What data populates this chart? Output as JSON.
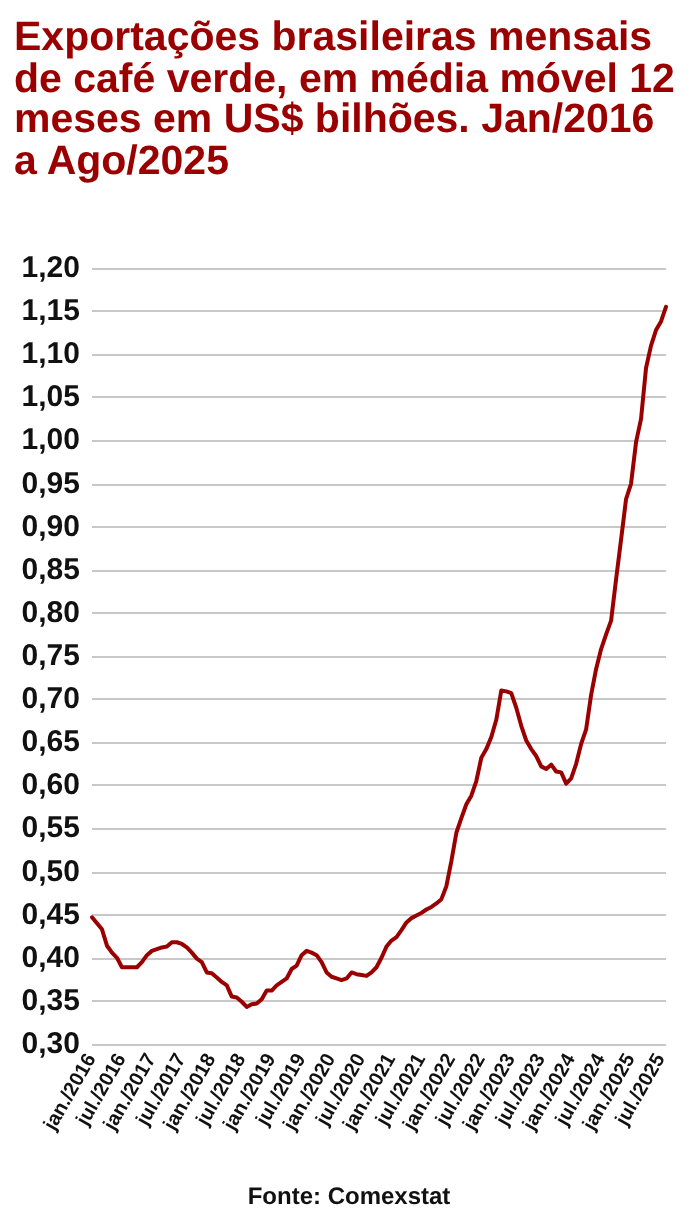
{
  "chart_data": {
    "type": "line",
    "title": "Exportações brasileiras mensais de café verde, em média móvel 12 meses em US$ bilhões. Jan/2016 a Ago/2025",
    "annotations": [
      "Fonte: Comexstat"
    ],
    "categories": [
      "jan./2016",
      null,
      null,
      null,
      null,
      null,
      "jul./2016",
      null,
      null,
      null,
      null,
      null,
      "jan./2017",
      null,
      null,
      null,
      null,
      null,
      "jul./2017",
      null,
      null,
      null,
      null,
      null,
      "jan./2018",
      null,
      null,
      null,
      null,
      null,
      "jul./2018",
      null,
      null,
      null,
      null,
      null,
      "jan./2019",
      null,
      null,
      null,
      null,
      null,
      "jul./2019",
      null,
      null,
      null,
      null,
      null,
      "jan./2020",
      null,
      null,
      null,
      null,
      null,
      "jul./2020",
      null,
      null,
      null,
      null,
      null,
      "jan./2021",
      null,
      null,
      null,
      null,
      null,
      "jul./2021",
      null,
      null,
      null,
      null,
      null,
      "jan./2022",
      null,
      null,
      null,
      null,
      null,
      "jul./2022",
      null,
      null,
      null,
      null,
      null,
      "jan./2023",
      null,
      null,
      null,
      null,
      null,
      "jul./2023",
      null,
      null,
      null,
      null,
      null,
      "jan./2024",
      null,
      null,
      null,
      null,
      null,
      "jul./2024",
      null,
      null,
      null,
      null,
      null,
      "jan./2025",
      null,
      null,
      null,
      null,
      null,
      "jul./2025",
      null
    ],
    "series": [
      {
        "color": "#9b0000",
        "values": [
          0.447,
          0.44,
          0.433,
          0.414,
          0.406,
          0.4,
          0.389,
          0.389,
          0.389,
          0.389,
          0.395,
          0.403,
          0.408,
          0.41,
          0.412,
          0.413,
          0.418,
          0.418,
          0.416,
          0.412,
          0.406,
          0.399,
          0.395,
          0.383,
          0.382,
          0.377,
          0.372,
          0.368,
          0.355,
          0.354,
          0.349,
          0.343,
          0.346,
          0.347,
          0.352,
          0.362,
          0.362,
          0.368,
          0.372,
          0.376,
          0.387,
          0.391,
          0.403,
          0.408,
          0.406,
          0.403,
          0.395,
          0.383,
          0.378,
          0.376,
          0.374,
          0.376,
          0.383,
          0.381,
          0.38,
          0.379,
          0.383,
          0.389,
          0.4,
          0.413,
          0.42,
          0.424,
          0.432,
          0.441,
          0.446,
          0.449,
          0.452,
          0.456,
          0.459,
          0.463,
          0.468,
          0.483,
          0.512,
          0.545,
          0.562,
          0.578,
          0.588,
          0.605,
          0.632,
          0.642,
          0.656,
          0.676,
          0.71,
          0.709,
          0.707,
          0.69,
          0.669,
          0.652,
          0.642,
          0.634,
          0.622,
          0.619,
          0.624,
          0.616,
          0.615,
          0.602,
          0.608,
          0.625,
          0.648,
          0.665,
          0.705,
          0.735,
          0.758,
          0.775,
          0.791,
          0.839,
          0.885,
          0.932,
          0.95,
          0.998,
          1.025,
          1.084,
          1.11,
          1.128,
          1.138,
          1.155
        ]
      }
    ],
    "ylim": [
      0.3,
      1.2
    ],
    "yticks": [
      {
        "value": 0.3,
        "label": "0,30"
      },
      {
        "value": 0.35,
        "label": "0,35"
      },
      {
        "value": 0.4,
        "label": "0,40"
      },
      {
        "value": 0.45,
        "label": "0,45"
      },
      {
        "value": 0.5,
        "label": "0,50"
      },
      {
        "value": 0.55,
        "label": "0,55"
      },
      {
        "value": 0.6,
        "label": "0,60"
      },
      {
        "value": 0.65,
        "label": "0,65"
      },
      {
        "value": 0.7,
        "label": "0,70"
      },
      {
        "value": 0.75,
        "label": "0,75"
      },
      {
        "value": 0.8,
        "label": "0,80"
      },
      {
        "value": 0.85,
        "label": "0,85"
      },
      {
        "value": 0.9,
        "label": "0,90"
      },
      {
        "value": 0.95,
        "label": "0,95"
      },
      {
        "value": 1.0,
        "label": "1,00"
      },
      {
        "value": 1.05,
        "label": "1,05"
      },
      {
        "value": 1.1,
        "label": "1,10"
      },
      {
        "value": 1.15,
        "label": "1,15"
      },
      {
        "value": 1.2,
        "label": "1,20"
      }
    ],
    "grid": "y",
    "marker": "none",
    "line_style": "solid"
  }
}
